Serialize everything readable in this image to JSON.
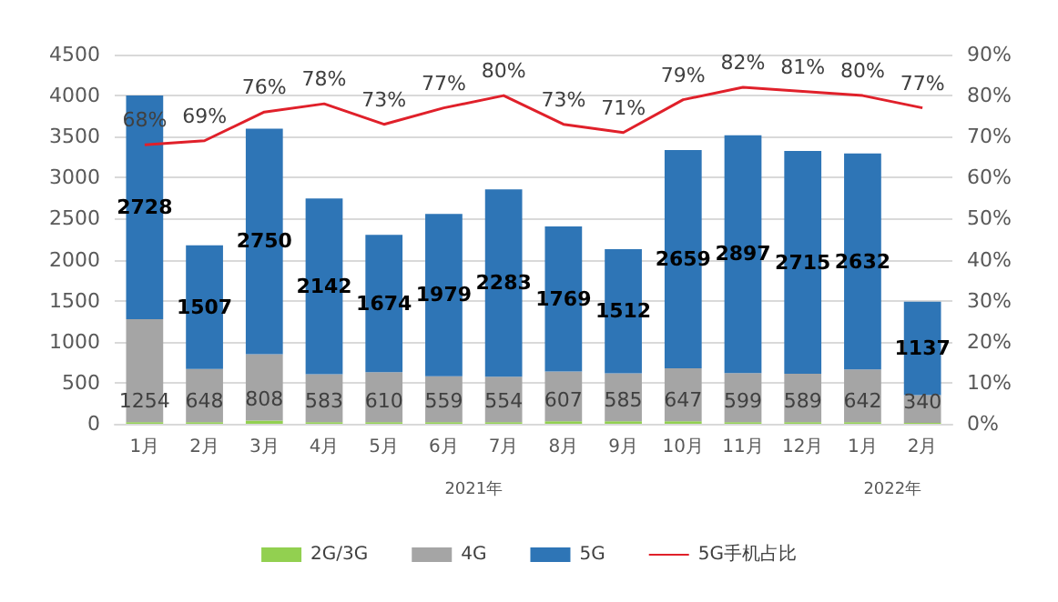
{
  "chart_data": {
    "type": "bar",
    "stacked": true,
    "categories": [
      "1月",
      "2月",
      "3月",
      "4月",
      "5月",
      "6月",
      "7月",
      "8月",
      "9月",
      "10月",
      "11月",
      "12月",
      "1月",
      "2月"
    ],
    "series": [
      {
        "name": "2G/3G",
        "color": "#92d050",
        "values": [
          20,
          20,
          40,
          20,
          20,
          20,
          20,
          30,
          30,
          30,
          20,
          20,
          20,
          10
        ]
      },
      {
        "name": "4G",
        "color": "#a5a5a5",
        "values": [
          1254,
          648,
          808,
          583,
          610,
          559,
          554,
          607,
          585,
          647,
          599,
          589,
          642,
          340
        ],
        "value_labels": [
          "1254",
          "648",
          "808",
          "583",
          "610",
          "559",
          "554",
          "607",
          "585",
          "647",
          "599",
          "589",
          "642",
          "340"
        ]
      },
      {
        "name": "5G",
        "color": "#2e75b6",
        "values": [
          2728,
          1507,
          2750,
          2142,
          1674,
          1979,
          2283,
          1769,
          1512,
          2659,
          2897,
          2715,
          2632,
          1137
        ],
        "value_labels": [
          "2728",
          "1507",
          "2750",
          "2142",
          "1674",
          "1979",
          "2283",
          "1769",
          "1512",
          "2659",
          "2897",
          "2715",
          "2632",
          "1137"
        ]
      },
      {
        "name": "5G手机占比",
        "type": "line",
        "axis": "y2",
        "color": "#e0202a",
        "values": [
          68,
          69,
          76,
          78,
          73,
          77,
          80,
          73,
          71,
          79,
          82,
          81,
          80,
          77
        ],
        "value_labels": [
          "68%",
          "69%",
          "76%",
          "78%",
          "73%",
          "77%",
          "80%",
          "73%",
          "71%",
          "79%",
          "82%",
          "81%",
          "80%",
          "77%"
        ]
      }
    ],
    "ylim": [
      0,
      4500
    ],
    "yticks": [
      0,
      500,
      1000,
      1500,
      2000,
      2500,
      3000,
      3500,
      4000,
      4500
    ],
    "y2lim": [
      0,
      90
    ],
    "y2ticks": [
      {
        "value": 0,
        "label": "0%"
      },
      {
        "value": 10,
        "label": "10%"
      },
      {
        "value": 20,
        "label": "20%"
      },
      {
        "value": 30,
        "label": "30%"
      },
      {
        "value": 40,
        "label": "40%"
      },
      {
        "value": 50,
        "label": "50%"
      },
      {
        "value": 60,
        "label": "60%"
      },
      {
        "value": 70,
        "label": "70%"
      },
      {
        "value": 80,
        "label": "80%"
      },
      {
        "value": 90,
        "label": "90%"
      }
    ],
    "annotations": [
      "2021年",
      "2022年"
    ],
    "grid": "y",
    "legend": "bottom",
    "marker": "none",
    "line_style": "solid"
  }
}
